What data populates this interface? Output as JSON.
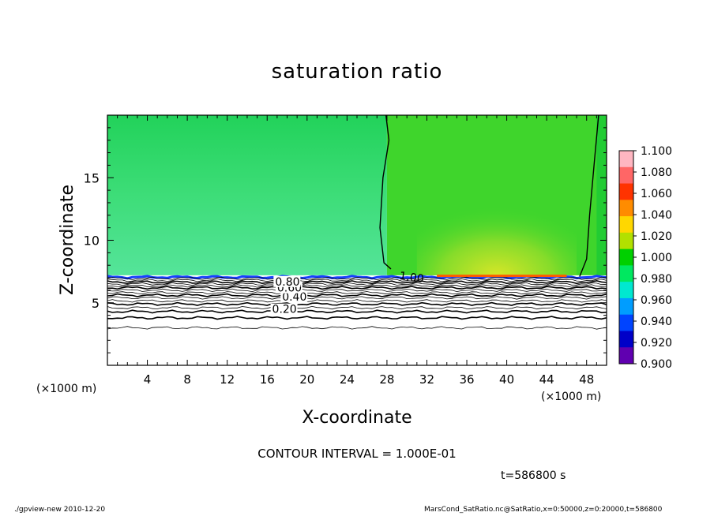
{
  "title": "saturation ratio",
  "contour_interval": "CONTOUR INTERVAL = 1.000E-01",
  "time_label": "t=586800 s",
  "footer": {
    "left": "./gpview-new   2010-12-20",
    "right": "MarsCond_SatRatio.nc@SatRatio,x=0:50000,z=0:20000,t=586800"
  },
  "colors": {
    "background": "#ffffff",
    "axis": "#000000"
  },
  "chart_data": {
    "type": "heatmap",
    "title": "saturation ratio",
    "xlabel": "X-coordinate",
    "ylabel": "Z-coordinate",
    "x_unit_left": "(×1000 m)",
    "x_unit_right": "(×1000 m)",
    "xlim": [
      0,
      50
    ],
    "ylim": [
      0,
      20
    ],
    "xticks": [
      4,
      8,
      12,
      16,
      20,
      24,
      28,
      32,
      36,
      40,
      44,
      48
    ],
    "yticks": [
      5,
      10,
      15
    ],
    "colorbar": {
      "levels": [
        "1.100",
        "1.080",
        "1.060",
        "1.040",
        "1.020",
        "1.000",
        "0.980",
        "0.960",
        "0.940",
        "0.920",
        "0.900"
      ],
      "colors": [
        "#ffb6c1",
        "#ff6666",
        "#ff3300",
        "#ff8c00",
        "#ffd700",
        "#b2e000",
        "#00d000",
        "#00e860",
        "#00e8d0",
        "#009dff",
        "#0044ff",
        "#0000c8",
        "#6000b0"
      ]
    },
    "fields": [
      {
        "name": "lower-dry-layer",
        "z_range": [
          0,
          7
        ],
        "value": "< 0.90",
        "color": "#ffffff"
      },
      {
        "name": "left-upper-region",
        "x_range": [
          0,
          28
        ],
        "z_range": [
          7,
          20
        ],
        "value": "0.98-1.00",
        "color": "#33dd66"
      },
      {
        "name": "right-upper-region",
        "x_range": [
          28,
          49
        ],
        "z_range": [
          7,
          20
        ],
        "value": "1.00-1.02",
        "color": "#44d62c"
      }
    ],
    "contours": [
      {
        "label": "0.20",
        "z": 4.5
      },
      {
        "label": "0.40",
        "z": 5.5
      },
      {
        "label": "0.60",
        "z": 6.2
      },
      {
        "label": "0.80",
        "z": 6.7
      },
      {
        "label": "1.00",
        "z": 7.2
      }
    ]
  }
}
